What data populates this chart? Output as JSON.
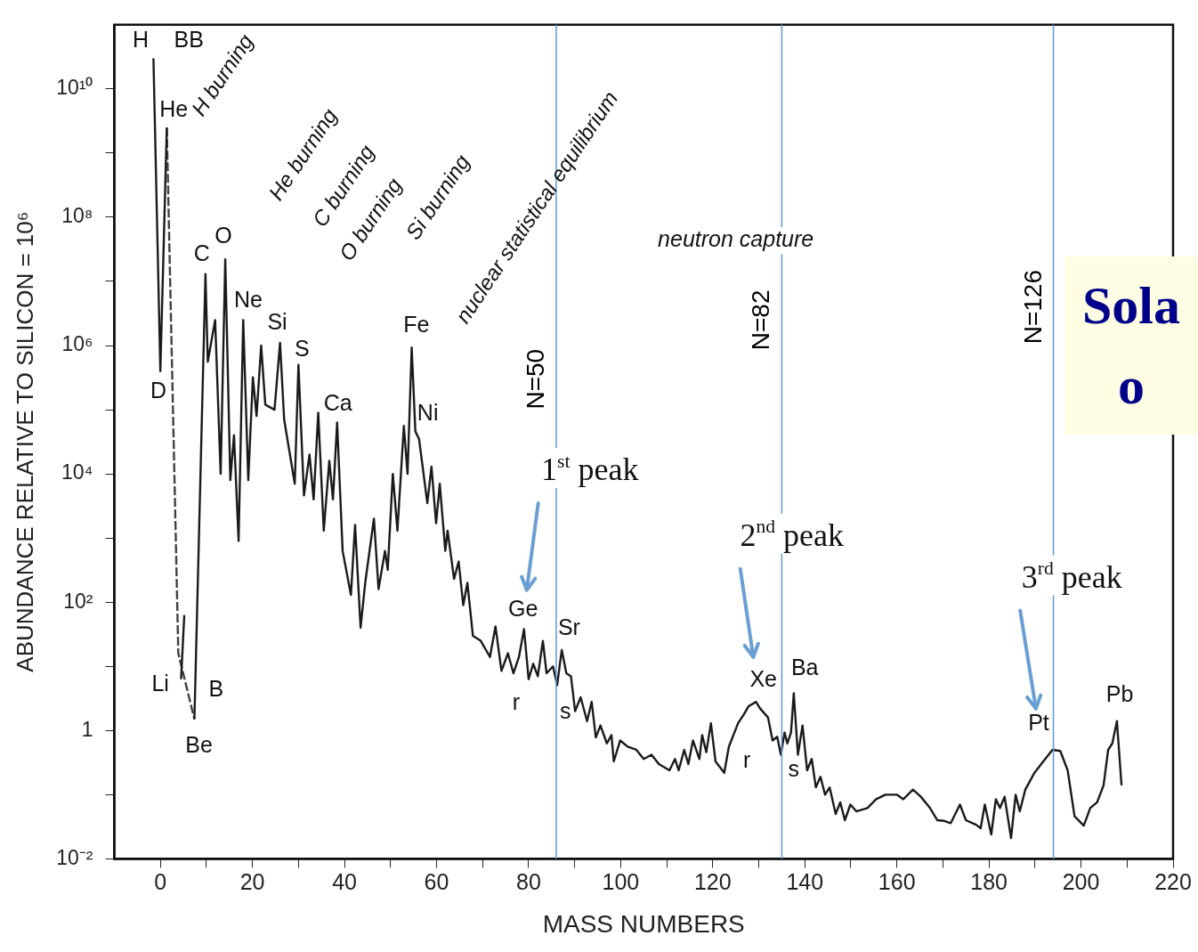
{
  "chart_data": {
    "type": "line",
    "xlabel": "MASS NUMBERS",
    "ylabel": "ABUNDANCE RELATIVE TO SILICON = 10⁶",
    "xlim": [
      -10,
      220
    ],
    "xticks": [
      0,
      {
        "value": 10,
        "label": null
      },
      20,
      {
        "value": 30,
        "label": null
      },
      40,
      {
        "value": 50,
        "label": null
      },
      60,
      {
        "value": 70,
        "label": null
      },
      80,
      {
        "value": 90,
        "label": null
      },
      100,
      {
        "value": 110,
        "label": null
      },
      120,
      {
        "value": 130,
        "label": null
      },
      140,
      {
        "value": 150,
        "label": null
      },
      160,
      {
        "value": 170,
        "label": null
      },
      180,
      {
        "value": 190,
        "label": null
      },
      200,
      {
        "value": 210,
        "label": null
      },
      220
    ],
    "log": "y",
    "ylim": [
      0.01,
      100000000000
    ],
    "yticks": [
      {
        "value": 0.01,
        "label": "10⁻²"
      },
      {
        "value": 0.1,
        "label": null
      },
      1,
      {
        "value": 10,
        "label": null
      },
      {
        "value": 100,
        "label": "10²"
      },
      {
        "value": 1000,
        "label": null
      },
      {
        "value": 10000,
        "label": "10⁴"
      },
      {
        "value": 100000,
        "label": null
      },
      {
        "value": 1000000,
        "label": "10⁶"
      },
      {
        "value": 10000000,
        "label": null
      },
      {
        "value": 100000000,
        "label": "10⁸"
      },
      {
        "value": 1000000000,
        "label": null
      },
      {
        "value": 10000000000,
        "label": "10¹⁰"
      }
    ],
    "grid": false,
    "legend": false,
    "series": [
      {
        "color": "#1a1a1a",
        "line_style": "solid",
        "x": [
          -1.5,
          0,
          1.4,
          3,
          4.5,
          5.2,
          6,
          7.4,
          9.8,
          10.3,
          11.9,
          13.1,
          14.1,
          15.2,
          16,
          17,
          18,
          19.1,
          20.1,
          20.9,
          21.9,
          22.8,
          24.8,
          26,
          26.9,
          29.2,
          30,
          31.2,
          32.4,
          33.3,
          34.3,
          35.5,
          36.7,
          37.5,
          38.4,
          39.6,
          41.4,
          42.3,
          43.5,
          44.5,
          46.4,
          47.4,
          48.8,
          49.4,
          50.5,
          51.5,
          52.9,
          53.7,
          54.6,
          55.4,
          56.2,
          58,
          58.9,
          59.9,
          60.7,
          61.9,
          62.4,
          63.8,
          64.8,
          65.8,
          66.7,
          67.9,
          69.6,
          71.6,
          72.8,
          74.1,
          75.5,
          76.7,
          77.9,
          79,
          80,
          81,
          82,
          83.1,
          83.9,
          85.3,
          86.2,
          87.2,
          88.2,
          89.2,
          90.1,
          91.3,
          92.7,
          93.7,
          94.6,
          95.6,
          97,
          98,
          98.5,
          99.9,
          101.5,
          103.4,
          105,
          106.7,
          108.3,
          110.6,
          111.8,
          112.6,
          113.8,
          114.7,
          115.7,
          117.1,
          117.7,
          118.6,
          119.6,
          120.6,
          122.5,
          123.5,
          125.5,
          126.8,
          127.8,
          129.4,
          130.3,
          132,
          133,
          134,
          134.8,
          135.6,
          136.2,
          137,
          137.6,
          138.5,
          139.5,
          140.5,
          141.5,
          142.4,
          143.4,
          144.4,
          145.4,
          146.7,
          147.7,
          148.7,
          149.9,
          151.2,
          153.6,
          155.5,
          157.5,
          160,
          161.4,
          163.5,
          165.2,
          167.2,
          168.8,
          170.3,
          171.7,
          173.7,
          175,
          177.2,
          178.2,
          179.1,
          180.5,
          181.5,
          182.4,
          183.4,
          184.8,
          185.8,
          186.7,
          187.9,
          189.9,
          191.8,
          193.8,
          195.5,
          197.1,
          198.6,
          200.6,
          202,
          203.5,
          204.9,
          205.9,
          206.8,
          207.8,
          208.8
        ],
        "values": [
          30000000000.0,
          400000.0,
          2500000000.0,
          null,
          6.3,
          63,
          null,
          1.5,
          13000000.0,
          560000.0,
          2500000.0,
          10000.0,
          22000000.0,
          8000.0,
          40000.0,
          900,
          2500000.0,
          8000.0,
          320000.0,
          80000.0,
          1000000.0,
          120000.0,
          100000.0,
          1100000.0,
          70000.0,
          7000.0,
          500000.0,
          4600.0,
          20000.0,
          4000.0,
          90000.0,
          1300.0,
          16000.0,
          4000.0,
          63000.0,
          630,
          130,
          1600.0,
          40,
          200,
          2000.0,
          160,
          630,
          320,
          10000.0,
          1300.0,
          56000.0,
          10000.0,
          930000.0,
          46000.0,
          35000.0,
          3500.0,
          13000.0,
          1700.0,
          7000.0,
          630,
          1300.0,
          230,
          430,
          90,
          200,
          30,
          25,
          14,
          42,
          8.5,
          16,
          7.8,
          14,
          38,
          6.3,
          11,
          7,
          25,
          7.8,
          10,
          5.1,
          18,
          7.8,
          7,
          2,
          3.3,
          1.4,
          2.8,
          0.78,
          1.2,
          0.63,
          0.85,
          0.33,
          0.7,
          0.56,
          0.5,
          0.36,
          0.42,
          0.3,
          0.24,
          0.36,
          0.24,
          0.5,
          0.3,
          0.7,
          0.36,
          0.85,
          0.46,
          1.3,
          0.33,
          0.22,
          0.56,
          1.3,
          1.8,
          2.4,
          2.8,
          2.2,
          1.6,
          0.7,
          0.8,
          0.42,
          0.93,
          0.63,
          0.93,
          3.8,
          0.42,
          1.2,
          0.24,
          0.36,
          0.13,
          0.19,
          0.1,
          0.13,
          0.05,
          0.076,
          0.04,
          0.07,
          0.055,
          0.062,
          0.085,
          0.1,
          0.1,
          0.085,
          0.12,
          0.093,
          0.062,
          0.04,
          0.039,
          0.036,
          0.07,
          0.04,
          0.034,
          0.03,
          0.07,
          0.024,
          0.085,
          0.062,
          0.093,
          0.021,
          0.1,
          0.055,
          0.12,
          0.22,
          0.33,
          0.5,
          0.48,
          0.24,
          0.046,
          0.033,
          0.062,
          0.076,
          0.14,
          0.5,
          0.63,
          1.4,
          0.14
        ]
      },
      {
        "color": "#404040",
        "line_style": "dashed",
        "x": [
          1.4,
          3.9,
          7.4
        ],
        "values": [
          2500000000.0,
          16,
          1.5
        ]
      }
    ],
    "ref_lines": [
      {
        "axis": "x",
        "value": 86,
        "color": "#5b9bd5"
      },
      {
        "axis": "x",
        "value": 135,
        "color": "#5b9bd5"
      },
      {
        "axis": "x",
        "value": 194,
        "color": "#5b9bd5"
      }
    ],
    "annotations": [
      "1$^{st}$ peak",
      "2$^{nd}$ peak",
      "3$^{rd}$ peak",
      {
        "text": "N=50",
        "x": 86,
        "y": 300000.0
      },
      {
        "text": "N=82",
        "x": 135,
        "y": 2500000.0
      },
      {
        "text": "N=126",
        "x": 194,
        "y": 4000000.0
      },
      "H burning",
      "He burning",
      "C burning",
      "O burning",
      "Si burning",
      "nuclear statistical equilibrium",
      "neutron capture",
      "H",
      "BB",
      "He",
      "D",
      "Li",
      "B",
      "Be",
      "C",
      "O",
      "Ne",
      "Si",
      "S",
      "Ca",
      "Fe",
      "Ni",
      "Ge",
      "Sr",
      "r",
      "s",
      "Xe",
      "Ba",
      "r",
      "s",
      "Pt",
      "Pb",
      "Sola",
      "o"
    ]
  }
}
